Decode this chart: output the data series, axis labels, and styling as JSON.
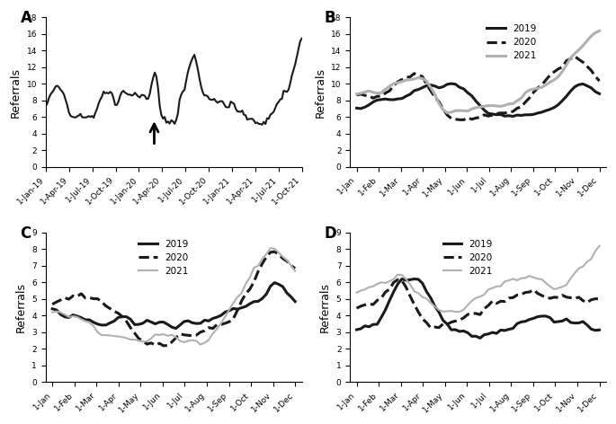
{
  "panel_A": {
    "label": "A",
    "ylabel": "Referrals",
    "ylim": [
      0,
      18
    ],
    "yticks": [
      0,
      2,
      4,
      6,
      8,
      10,
      12,
      14,
      16,
      18
    ],
    "xtick_labels": [
      "1-Jan-19",
      "1-Apr-19",
      "1-Jul-19",
      "1-Oct-19",
      "1-Jan-20",
      "1-Apr-20",
      "1-Jul-20",
      "1-Oct-20",
      "1-Jan-21",
      "1-Apr-21",
      "1-Jul-21",
      "1-Oct-21"
    ],
    "line_color": "#1a1a1a",
    "line_width": 1.5
  },
  "panel_B": {
    "label": "B",
    "ylabel": "Referrals",
    "ylim": [
      0,
      18
    ],
    "yticks": [
      0,
      2,
      4,
      6,
      8,
      10,
      12,
      14,
      16,
      18
    ],
    "xtick_labels": [
      "1-Jan",
      "1-Feb",
      "1-Mar",
      "1-Apr",
      "1-May",
      "1-Jun",
      "1-Jul",
      "1-Aug",
      "1-Sep",
      "1-Oct",
      "1-Nov",
      "1-Dec"
    ],
    "legend_labels": [
      "2019",
      "2020",
      "2021"
    ],
    "colors": [
      "#1a1a1a",
      "#1a1a1a",
      "#b0b0b0"
    ],
    "linestyles": [
      "solid",
      "dashed",
      "solid"
    ],
    "linewidths": [
      2.2,
      2.2,
      2.2
    ]
  },
  "panel_C": {
    "label": "C",
    "ylabel": "Referrals",
    "ylim": [
      0,
      9
    ],
    "yticks": [
      0,
      1,
      2,
      3,
      4,
      5,
      6,
      7,
      8,
      9
    ],
    "xtick_labels": [
      "1-Jan",
      "1-Feb",
      "1-Mar",
      "1-Apr",
      "1-May",
      "1-Jun",
      "1-Jul",
      "1-Aug",
      "1-Sep",
      "1-Oct",
      "1-Nov",
      "1-Dec"
    ],
    "legend_labels": [
      "2019",
      "2020",
      "2021"
    ],
    "colors": [
      "#1a1a1a",
      "#1a1a1a",
      "#b0b0b0"
    ],
    "linestyles": [
      "solid",
      "dashed",
      "solid"
    ],
    "linewidths": [
      2.2,
      2.2,
      1.5
    ]
  },
  "panel_D": {
    "label": "D",
    "ylabel": "Referrals",
    "ylim": [
      0,
      9
    ],
    "yticks": [
      0,
      1,
      2,
      3,
      4,
      5,
      6,
      7,
      8,
      9
    ],
    "xtick_labels": [
      "1-Jan",
      "1-Feb",
      "1-Mar",
      "1-Apr",
      "1-May",
      "1-Jun",
      "1-Jul",
      "1-Aug",
      "1-Sep",
      "1-Oct",
      "1-Nov",
      "1-Dec"
    ],
    "legend_labels": [
      "2019",
      "2020",
      "2021"
    ],
    "colors": [
      "#1a1a1a",
      "#1a1a1a",
      "#b0b0b0"
    ],
    "linestyles": [
      "solid",
      "dashed",
      "solid"
    ],
    "linewidths": [
      2.2,
      2.2,
      1.5
    ]
  },
  "background_color": "#ffffff",
  "tick_fontsize": 6.5,
  "label_fontsize": 9,
  "panel_label_fontsize": 12
}
